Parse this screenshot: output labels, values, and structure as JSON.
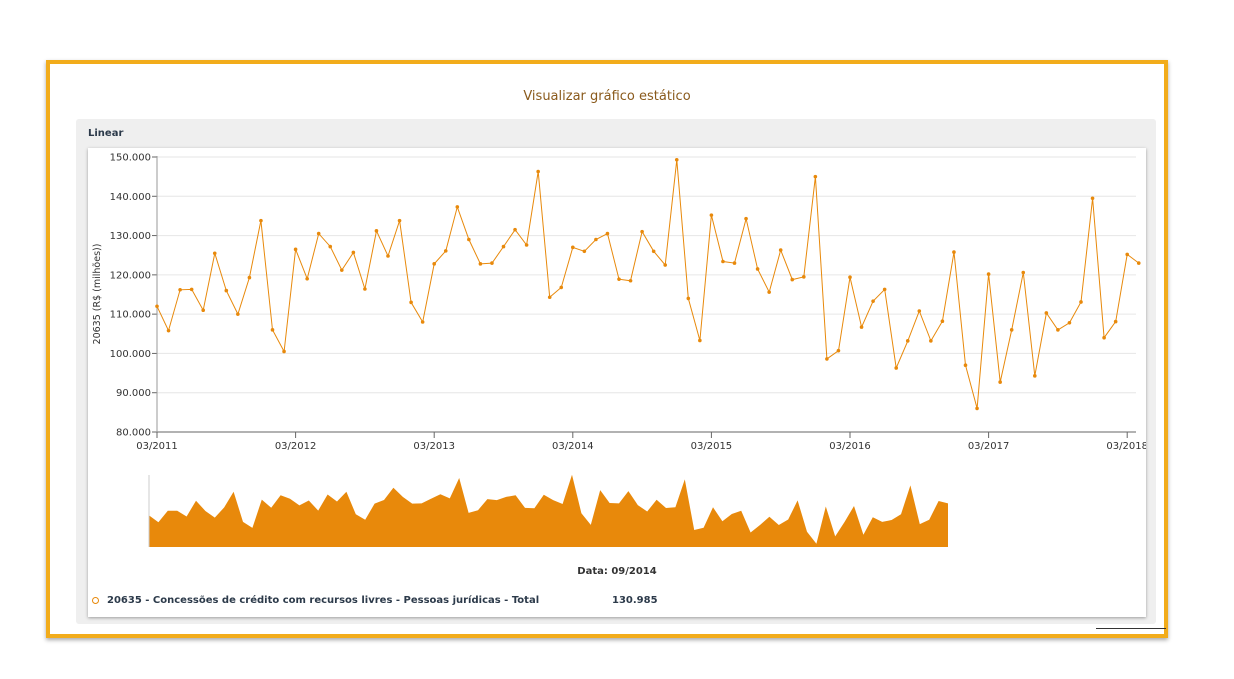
{
  "modal": {
    "title": "Visualizar gráfico estático"
  },
  "panel": {
    "label": "Linear"
  },
  "colors": {
    "series": "#e8890b",
    "frame": "#f2ac1b",
    "grid": "#e6e6e6"
  },
  "chart_data": {
    "type": "line",
    "ylabel": "20635 (R$ (milhões))",
    "ylim": [
      80000,
      150000
    ],
    "yticks": [
      80000,
      90000,
      100000,
      110000,
      120000,
      130000,
      140000,
      150000
    ],
    "ytick_labels": [
      "80.000",
      "90.000",
      "100.000",
      "110.000",
      "120.000",
      "130.000",
      "140.000",
      "150.000"
    ],
    "x_start": "03/2011",
    "xtick_labels": [
      "03/2011",
      "03/2012",
      "03/2013",
      "03/2014",
      "03/2015",
      "03/2016",
      "03/2017",
      "03/2018"
    ],
    "navigator": true,
    "series": [
      {
        "name": "20635 - Concessões de crédito com recursos livres - Pessoas jurídicas - Total",
        "values": [
          112000,
          105800,
          116200,
          116300,
          111000,
          125500,
          116000,
          110000,
          119300,
          133800,
          106000,
          100500,
          126500,
          119000,
          130500,
          127200,
          121200,
          125700,
          116400,
          131200,
          124800,
          133800,
          113000,
          108000,
          122800,
          126100,
          137300,
          129000,
          122800,
          123000,
          127200,
          131500,
          127600,
          146300,
          114300,
          116800,
          127000,
          126000,
          129000,
          130500,
          118900,
          118500,
          131000,
          126000,
          122500,
          149300,
          114000,
          103300,
          135200,
          123400,
          123000,
          134300,
          121500,
          115600,
          126300,
          118800,
          119500,
          145000,
          98600,
          100700,
          119400,
          106700,
          113300,
          116300,
          96300,
          103200,
          110800,
          103200,
          108200,
          125800,
          97000,
          86000,
          120200,
          92700,
          106000,
          120600,
          94300,
          110300,
          106000,
          107800,
          113100,
          139500,
          104000,
          108100,
          125200,
          123000
        ]
      }
    ]
  },
  "footer": {
    "date_label": "Data: 09/2014",
    "legend_name": "20635 - Concessões de crédito com recursos livres - Pessoas jurídicas - Total",
    "legend_value": "130.985"
  }
}
